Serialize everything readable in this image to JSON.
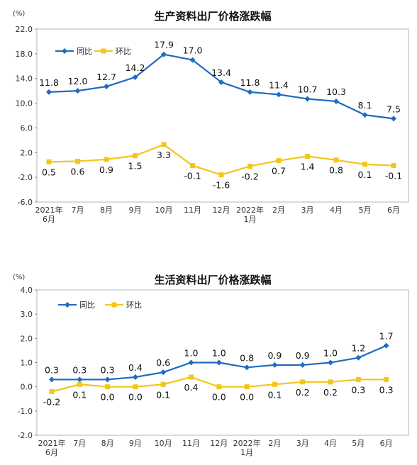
{
  "chart_data": [
    {
      "type": "line",
      "title": "生产资料出厂价格涨跌幅",
      "unit": "(%)",
      "ylim": [
        -6.0,
        22.0
      ],
      "yticks": [
        "22.0",
        "18.0",
        "14.0",
        "10.0",
        "6.0",
        "2.0",
        "-2.0",
        "-6.0"
      ],
      "ytick_values": [
        22,
        18,
        14,
        10,
        6,
        2,
        -2,
        -6
      ],
      "grid": false,
      "legend": "top-left",
      "categories": [
        [
          "2021年",
          "6月"
        ],
        [
          "7月"
        ],
        [
          "8月"
        ],
        [
          "9月"
        ],
        [
          "10月"
        ],
        [
          "11月"
        ],
        [
          "12月"
        ],
        [
          "2022年",
          "1月"
        ],
        [
          "2月"
        ],
        [
          "3月"
        ],
        [
          "4月"
        ],
        [
          "5月"
        ],
        [
          "6月"
        ]
      ],
      "series": [
        {
          "name": "同比",
          "color": "#1f6bbf",
          "marker": "diamond",
          "values": [
            11.8,
            12.0,
            12.7,
            14.2,
            17.9,
            17.0,
            13.4,
            11.8,
            11.4,
            10.7,
            10.3,
            8.1,
            7.5
          ],
          "labels": [
            "11.8",
            "12.0",
            "12.7",
            "14.2",
            "17.9",
            "17.0",
            "13.4",
            "11.8",
            "11.4",
            "10.7",
            "10.3",
            "8.1",
            "7.5"
          ]
        },
        {
          "name": "环比",
          "color": "#f5c518",
          "marker": "square",
          "values": [
            0.5,
            0.6,
            0.9,
            1.5,
            3.3,
            -0.1,
            -1.6,
            -0.2,
            0.7,
            1.4,
            0.8,
            0.1,
            -0.1
          ],
          "labels": [
            "0.5",
            "0.6",
            "0.9",
            "1.5",
            "3.3",
            "-0.1",
            "-1.6",
            "-0.2",
            "0.7",
            "1.4",
            "0.8",
            "0.1",
            "-0.1"
          ]
        }
      ]
    },
    {
      "type": "line",
      "title": "生活资料出厂价格涨跌幅",
      "unit": "(%)",
      "ylim": [
        -2.0,
        4.0
      ],
      "yticks": [
        "4.0",
        "3.0",
        "2.0",
        "1.0",
        "0.0",
        "-1.0",
        "-2.0"
      ],
      "ytick_values": [
        4,
        3,
        2,
        1,
        0,
        -1,
        -2
      ],
      "grid": false,
      "legend": "top-left",
      "categories": [
        [
          "2021年",
          "6月"
        ],
        [
          "7月"
        ],
        [
          "8月"
        ],
        [
          "9月"
        ],
        [
          "10月"
        ],
        [
          "11月"
        ],
        [
          "12月"
        ],
        [
          "2022年",
          "1月"
        ],
        [
          "2月"
        ],
        [
          "3月"
        ],
        [
          "4月"
        ],
        [
          "5月"
        ],
        [
          "6月"
        ]
      ],
      "series": [
        {
          "name": "同比",
          "color": "#1f6bbf",
          "marker": "diamond",
          "values": [
            0.3,
            0.3,
            0.3,
            0.4,
            0.6,
            1.0,
            1.0,
            0.8,
            0.9,
            0.9,
            1.0,
            1.2,
            1.7
          ],
          "labels": [
            "0.3",
            "0.3",
            "0.3",
            "0.4",
            "0.6",
            "1.0",
            "1.0",
            "0.8",
            "0.9",
            "0.9",
            "1.0",
            "1.2",
            "1.7"
          ]
        },
        {
          "name": "环比",
          "color": "#f5c518",
          "marker": "square",
          "values": [
            -0.2,
            0.1,
            0.0,
            0.0,
            0.1,
            0.4,
            0.0,
            0.0,
            0.1,
            0.2,
            0.2,
            0.3,
            0.3
          ],
          "labels": [
            "-0.2",
            "0.1",
            "0.0",
            "0.0",
            "0.1",
            "0.4",
            "0.0",
            "0.0",
            "0.1",
            "0.2",
            "0.2",
            "0.3",
            "0.3"
          ]
        }
      ]
    }
  ]
}
